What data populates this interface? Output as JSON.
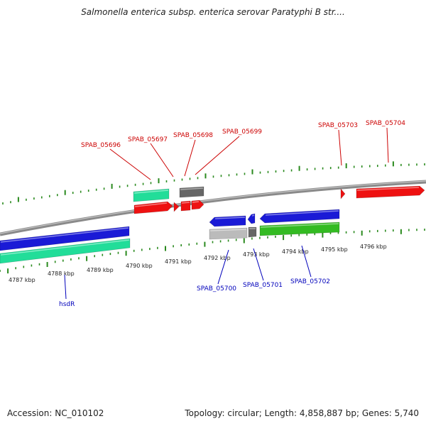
{
  "title": "Salmonella enterica subsp. enterica serovar Paratyphi B str....",
  "footer": {
    "accession": "Accession: NC_010102",
    "summary": "Topology: circular; Length: 4,858,887 bp; Genes: 5,740"
  },
  "colors": {
    "tick": "#2a8a1e",
    "backbone": "#8a8a8a",
    "top_label": "#cc0000",
    "bottom_label": "#0000bb",
    "gene_red": "#ee1111",
    "gene_blue": "#1a1ad6",
    "gene_teal": "#22dd99",
    "gene_green": "#33bb22",
    "gene_gray": "#666666",
    "gene_lightgray": "#bbbbbb"
  },
  "scale_labels": [
    "4787 kbp",
    "4788 kbp",
    "4789 kbp",
    "4790 kbp",
    "4791 kbp",
    "4792 kbp",
    "4793 kbp",
    "4794 kbp",
    "4795 kbp",
    "4796 kbp"
  ],
  "top_gene_labels": [
    "SPAB_05696",
    "SPAB_05697",
    "SPAB_05698",
    "SPAB_05699",
    "SPAB_05703",
    "SPAB_05704"
  ],
  "bottom_gene_labels": [
    "SPAB_05700",
    "SPAB_05701",
    "SPAB_05702",
    "hsdR"
  ]
}
